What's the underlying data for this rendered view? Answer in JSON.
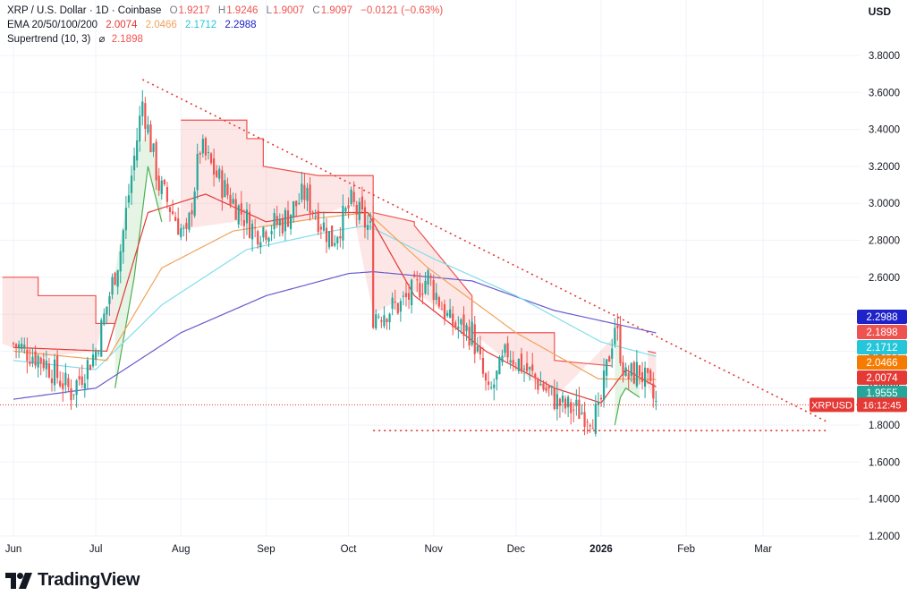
{
  "legend": {
    "symbol": "XRP / U.S. Dollar · 1D · Coinbase",
    "open_label": "O",
    "open": "1.9217",
    "high_label": "H",
    "high": "1.9246",
    "low_label": "L",
    "low": "1.9007",
    "close_label": "C",
    "close": "1.9097",
    "change": "−0.0121 (−0.63%)",
    "ema_label": "EMA 20/50/100/200",
    "ema20": "2.0074",
    "ema50": "2.0466",
    "ema100": "2.1712",
    "ema200": "2.2988",
    "supertrend_label": "Supertrend (10, 3)",
    "supertrend_icon": "eye-off-icon",
    "supertrend_value": "2.1898"
  },
  "currency": "USD",
  "brand": {
    "name": "TradingView",
    "icon": "tradingview-logo-icon"
  },
  "colors": {
    "up": "#26a69a",
    "down": "#ef5350",
    "ema20": "#e53935",
    "ema50": "#f0a35b",
    "ema100": "#80deea",
    "ema200": "#6a5acd",
    "supertrend_down": "#ef5350",
    "supertrend_up": "#4caf50",
    "trendline": "#e53935",
    "price_tag": "#e53935"
  },
  "chart_data": {
    "type": "candlestick",
    "title": "XRP / U.S. Dollar · 1D · Coinbase",
    "ylim": [
      1.12,
      3.98
    ],
    "y_ticks": [
      "3.8000",
      "3.6000",
      "3.4000",
      "3.2000",
      "3.0000",
      "2.8000",
      "2.6000",
      "2.4000",
      "2.2000",
      "2.0000",
      "1.8000",
      "1.6000",
      "1.4000",
      "1.2000"
    ],
    "x_ticks": [
      "Jun",
      "Jul",
      "Aug",
      "Sep",
      "Oct",
      "Nov",
      "Dec",
      "2026",
      "Feb",
      "Mar"
    ],
    "price_tags": [
      {
        "label": "2.2988",
        "color": "#1e22c9"
      },
      {
        "label": "2.1898",
        "color": "#ef5350"
      },
      {
        "label": "2.1712",
        "color": "#26c6da"
      },
      {
        "label": "2.0466",
        "color": "#f57c00"
      },
      {
        "label": "2.0074",
        "color": "#e53935"
      },
      {
        "label": "1.9555",
        "color": "#26a69a"
      }
    ],
    "current_price_tag": {
      "symbol": "XRPUSD",
      "value": "1.9097",
      "countdown": "16:12:45"
    },
    "ohlc_anchors": [
      {
        "date": "2025-06-01",
        "close": 2.24
      },
      {
        "date": "2025-06-12",
        "close": 2.15
      },
      {
        "date": "2025-06-22",
        "close": 1.98
      },
      {
        "date": "2025-07-01",
        "close": 2.2
      },
      {
        "date": "2025-07-10",
        "close": 2.75
      },
      {
        "date": "2025-07-18",
        "close": 3.55
      },
      {
        "date": "2025-07-24",
        "close": 3.1
      },
      {
        "date": "2025-08-03",
        "close": 2.8
      },
      {
        "date": "2025-08-08",
        "close": 3.3
      },
      {
        "date": "2025-08-18",
        "close": 3.05
      },
      {
        "date": "2025-08-28",
        "close": 2.85
      },
      {
        "date": "2025-09-07",
        "close": 2.9
      },
      {
        "date": "2025-09-15",
        "close": 3.05
      },
      {
        "date": "2025-09-25",
        "close": 2.8
      },
      {
        "date": "2025-10-02",
        "close": 3.0
      },
      {
        "date": "2025-10-09",
        "close": 2.85
      },
      {
        "date": "2025-10-10",
        "close": 2.4
      },
      {
        "date": "2025-10-20",
        "close": 2.45
      },
      {
        "date": "2025-10-30",
        "close": 2.6
      },
      {
        "date": "2025-11-07",
        "close": 2.35
      },
      {
        "date": "2025-11-15",
        "close": 2.3
      },
      {
        "date": "2025-11-21",
        "close": 1.95
      },
      {
        "date": "2025-11-28",
        "close": 2.2
      },
      {
        "date": "2025-12-08",
        "close": 2.05
      },
      {
        "date": "2025-12-18",
        "close": 1.9
      },
      {
        "date": "2025-12-31",
        "close": 1.85
      },
      {
        "date": "2026-01-06",
        "close": 2.35
      },
      {
        "date": "2026-01-10",
        "close": 2.05
      },
      {
        "date": "2026-01-15",
        "close": 2.1
      },
      {
        "date": "2026-01-21",
        "close": 1.91
      }
    ],
    "ema20_anchors": [
      {
        "date": "2025-06-01",
        "value": 2.22
      },
      {
        "date": "2025-07-05",
        "value": 2.2
      },
      {
        "date": "2025-07-20",
        "value": 2.95
      },
      {
        "date": "2025-08-10",
        "value": 3.05
      },
      {
        "date": "2025-09-01",
        "value": 2.9
      },
      {
        "date": "2025-09-20",
        "value": 2.95
      },
      {
        "date": "2025-10-08",
        "value": 2.95
      },
      {
        "date": "2025-10-25",
        "value": 2.5
      },
      {
        "date": "2025-11-20",
        "value": 2.2
      },
      {
        "date": "2025-12-15",
        "value": 2.0
      },
      {
        "date": "2026-01-01",
        "value": 1.92
      },
      {
        "date": "2026-01-10",
        "value": 2.1
      },
      {
        "date": "2026-01-21",
        "value": 2.0074
      }
    ],
    "ema50_anchors": [
      {
        "date": "2025-06-01",
        "value": 2.2
      },
      {
        "date": "2025-07-05",
        "value": 2.15
      },
      {
        "date": "2025-07-25",
        "value": 2.65
      },
      {
        "date": "2025-08-20",
        "value": 2.85
      },
      {
        "date": "2025-09-20",
        "value": 2.92
      },
      {
        "date": "2025-10-08",
        "value": 2.95
      },
      {
        "date": "2025-10-30",
        "value": 2.65
      },
      {
        "date": "2025-12-01",
        "value": 2.3
      },
      {
        "date": "2025-12-31",
        "value": 2.05
      },
      {
        "date": "2026-01-21",
        "value": 2.0466
      }
    ],
    "ema100_anchors": [
      {
        "date": "2025-06-01",
        "value": 2.15
      },
      {
        "date": "2025-07-01",
        "value": 2.1
      },
      {
        "date": "2025-07-25",
        "value": 2.45
      },
      {
        "date": "2025-08-25",
        "value": 2.75
      },
      {
        "date": "2025-09-25",
        "value": 2.85
      },
      {
        "date": "2025-10-08",
        "value": 2.88
      },
      {
        "date": "2025-11-01",
        "value": 2.7
      },
      {
        "date": "2025-12-01",
        "value": 2.5
      },
      {
        "date": "2026-01-01",
        "value": 2.25
      },
      {
        "date": "2026-01-21",
        "value": 2.1712
      }
    ],
    "ema200_anchors": [
      {
        "date": "2025-06-01",
        "value": 1.94
      },
      {
        "date": "2025-07-01",
        "value": 2.0
      },
      {
        "date": "2025-08-01",
        "value": 2.3
      },
      {
        "date": "2025-09-01",
        "value": 2.5
      },
      {
        "date": "2025-10-01",
        "value": 2.62
      },
      {
        "date": "2025-10-10",
        "value": 2.63
      },
      {
        "date": "2025-11-15",
        "value": 2.58
      },
      {
        "date": "2025-12-15",
        "value": 2.42
      },
      {
        "date": "2026-01-21",
        "value": 2.2988
      }
    ],
    "supertrend_segments": [
      {
        "direction": "down",
        "points": [
          {
            "date": "2025-05-28",
            "value": 2.6
          },
          {
            "date": "2025-06-10",
            "value": 2.6
          },
          {
            "date": "2025-06-10",
            "value": 2.5
          },
          {
            "date": "2025-07-01",
            "value": 2.5
          },
          {
            "date": "2025-07-01",
            "value": 2.35
          },
          {
            "date": "2025-07-08",
            "value": 2.35
          }
        ]
      },
      {
        "direction": "up",
        "points": [
          {
            "date": "2025-07-08",
            "value": 2.0
          },
          {
            "date": "2025-07-15",
            "value": 2.6
          },
          {
            "date": "2025-07-20",
            "value": 3.2
          },
          {
            "date": "2025-07-25",
            "value": 2.9
          }
        ]
      },
      {
        "direction": "down",
        "points": [
          {
            "date": "2025-08-01",
            "value": 3.45
          },
          {
            "date": "2025-08-25",
            "value": 3.45
          },
          {
            "date": "2025-08-25",
            "value": 3.35
          },
          {
            "date": "2025-08-31",
            "value": 3.35
          },
          {
            "date": "2025-08-31",
            "value": 3.2
          },
          {
            "date": "2025-09-20",
            "value": 3.15
          },
          {
            "date": "2025-10-02",
            "value": 3.15
          },
          {
            "date": "2025-10-10",
            "value": 3.15
          },
          {
            "date": "2025-10-10",
            "value": 2.95
          },
          {
            "date": "2025-10-25",
            "value": 2.9
          },
          {
            "date": "2025-10-25",
            "value": 2.88
          },
          {
            "date": "2025-11-15",
            "value": 2.5
          },
          {
            "date": "2025-11-15",
            "value": 2.3
          },
          {
            "date": "2025-12-15",
            "value": 2.3
          },
          {
            "date": "2025-12-15",
            "value": 2.15
          },
          {
            "date": "2026-01-05",
            "value": 2.12
          }
        ]
      },
      {
        "direction": "up",
        "points": [
          {
            "date": "2026-01-06",
            "value": 1.8
          },
          {
            "date": "2026-01-08",
            "value": 1.95
          },
          {
            "date": "2026-01-10",
            "value": 2.0
          },
          {
            "date": "2026-01-15",
            "value": 1.95
          }
        ]
      },
      {
        "direction": "down",
        "points": [
          {
            "date": "2026-01-18",
            "value": 2.2
          },
          {
            "date": "2026-01-21",
            "value": 2.1898
          }
        ]
      }
    ],
    "trendlines": [
      {
        "name": "descending-resistance",
        "from": {
          "date": "2025-07-18",
          "value": 3.67
        },
        "to": {
          "date": "2026-03-24",
          "value": 1.82
        }
      },
      {
        "name": "horizontal-support",
        "from": {
          "date": "2025-10-10",
          "value": 1.77
        },
        "to": {
          "date": "2026-03-24",
          "value": 1.77
        }
      }
    ]
  }
}
